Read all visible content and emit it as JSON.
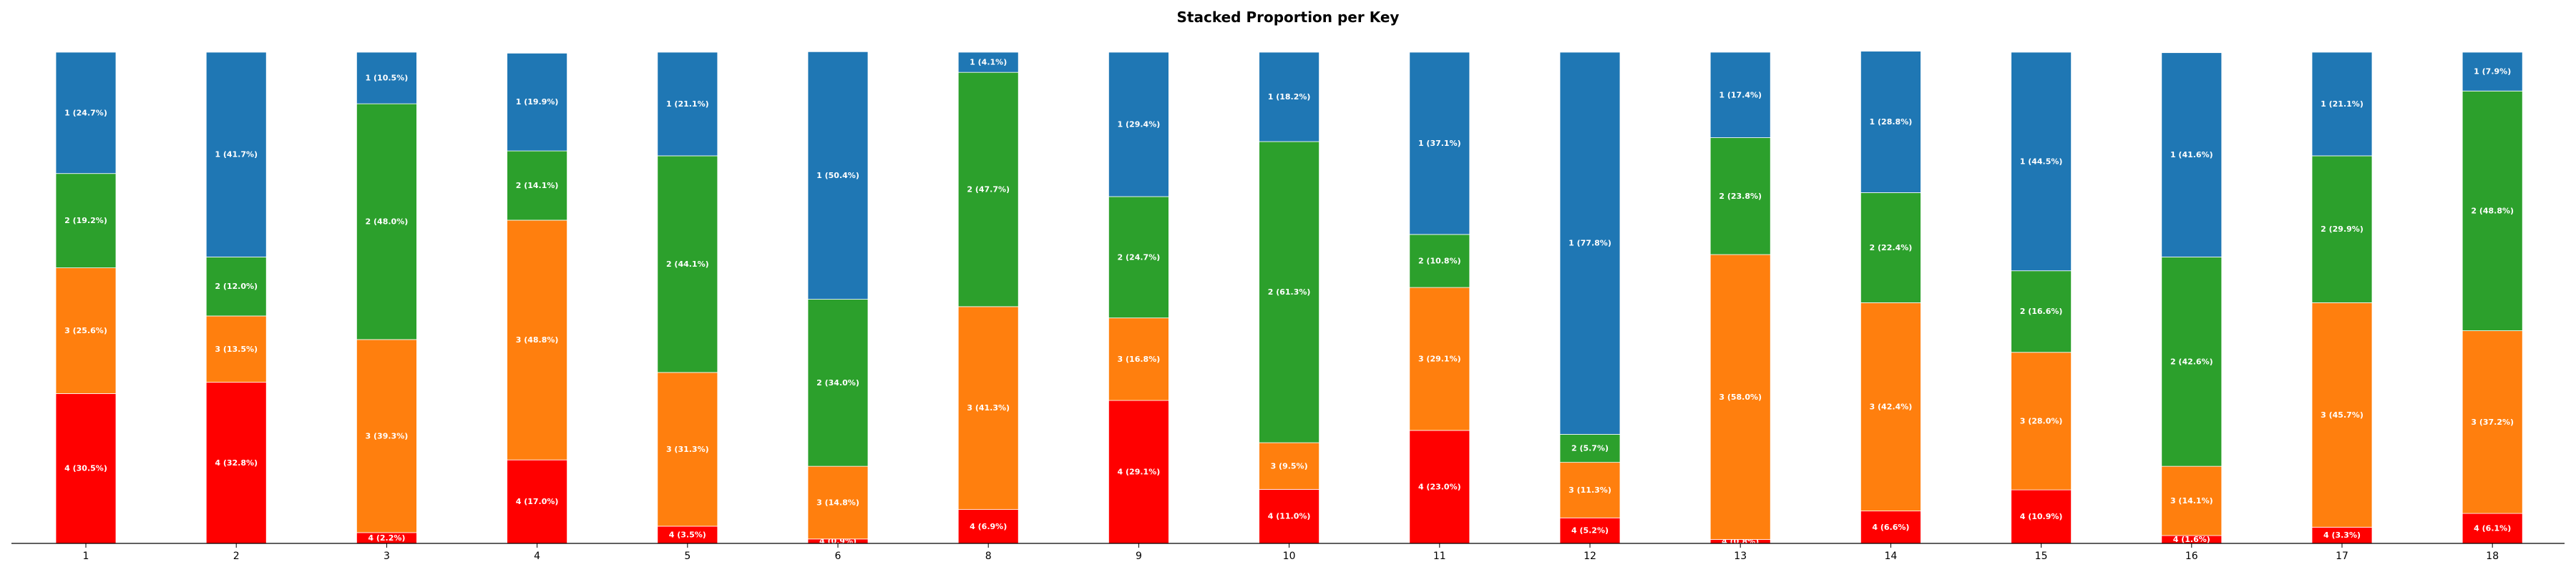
{
  "chart_data": {
    "type": "bar",
    "stacked": true,
    "title": "Stacked Proportion per Key",
    "xlabel": "",
    "ylabel": "",
    "ylim": [
      0,
      100
    ],
    "categories": [
      "1",
      "2",
      "3",
      "4",
      "5",
      "6",
      "8",
      "9",
      "10",
      "11",
      "12",
      "13",
      "14",
      "15",
      "16",
      "17",
      "18"
    ],
    "series": [
      {
        "name": "4",
        "color": "#ff0000",
        "values": [
          30.5,
          32.8,
          2.2,
          17.0,
          3.5,
          0.9,
          6.9,
          29.1,
          11.0,
          23.0,
          5.2,
          0.8,
          6.6,
          10.9,
          1.6,
          3.3,
          6.1
        ],
        "labels": [
          "4 (30.5%)",
          "4 (32.8%)",
          "4 (2.2%)",
          "4 (17.0%)",
          "4 (3.5%)",
          "4 (0.9%)",
          "4 (6.9%)",
          "4 (29.1%)",
          "4 (11.0%)",
          "4 (23.0%)",
          "4 (5.2%)",
          "4 (0.8%)",
          "4 (6.6%)",
          "4 (10.9%)",
          "4 (1.6%)",
          "4 (3.3%)",
          "4 (6.1%)"
        ]
      },
      {
        "name": "3",
        "color": "#ff7f0e",
        "values": [
          25.6,
          13.5,
          39.3,
          48.8,
          31.3,
          14.8,
          41.3,
          16.8,
          9.5,
          29.1,
          11.3,
          58.0,
          42.4,
          28.0,
          14.1,
          45.7,
          37.2
        ],
        "labels": [
          "3 (25.6%)",
          "3 (13.5%)",
          "3 (39.3%)",
          "3 (48.8%)",
          "3 (31.3%)",
          "3 (14.8%)",
          "3 (41.3%)",
          "3 (16.8%)",
          "3 (9.5%)",
          "3 (29.1%)",
          "3 (11.3%)",
          "3 (58.0%)",
          "3 (42.4%)",
          "3 (28.0%)",
          "3 (14.1%)",
          "3 (45.7%)",
          "3 (37.2%)"
        ]
      },
      {
        "name": "2",
        "color": "#2ca02c",
        "values": [
          19.2,
          12.0,
          48.0,
          14.1,
          44.1,
          34.0,
          47.7,
          24.7,
          61.3,
          10.8,
          5.7,
          23.8,
          22.4,
          16.6,
          42.6,
          29.9,
          48.8
        ],
        "labels": [
          "2 (19.2%)",
          "2 (12.0%)",
          "2 (48.0%)",
          "2 (14.1%)",
          "2 (44.1%)",
          "2 (34.0%)",
          "2 (47.7%)",
          "2 (24.7%)",
          "2 (61.3%)",
          "2 (10.8%)",
          "2 (5.7%)",
          "2 (23.8%)",
          "2 (22.4%)",
          "2 (16.6%)",
          "2 (42.6%)",
          "2 (29.9%)",
          "2 (48.8%)"
        ]
      },
      {
        "name": "1",
        "color": "#1f77b4",
        "values": [
          24.7,
          41.7,
          10.5,
          19.9,
          21.1,
          50.4,
          4.1,
          29.4,
          18.2,
          37.1,
          77.8,
          17.4,
          28.8,
          44.5,
          41.6,
          21.1,
          7.9
        ],
        "labels": [
          "1 (24.7%)",
          "1 (41.7%)",
          "1 (10.5%)",
          "1 (19.9%)",
          "1 (21.1%)",
          "1 (50.4%)",
          "1 (4.1%)",
          "1 (29.4%)",
          "1 (18.2%)",
          "1 (37.1%)",
          "1 (77.8%)",
          "1 (17.4%)",
          "1 (28.8%)",
          "1 (44.5%)",
          "1 (41.6%)",
          "1 (21.1%)",
          "1 (7.9%)"
        ]
      }
    ],
    "grid": false,
    "legend": "none"
  }
}
